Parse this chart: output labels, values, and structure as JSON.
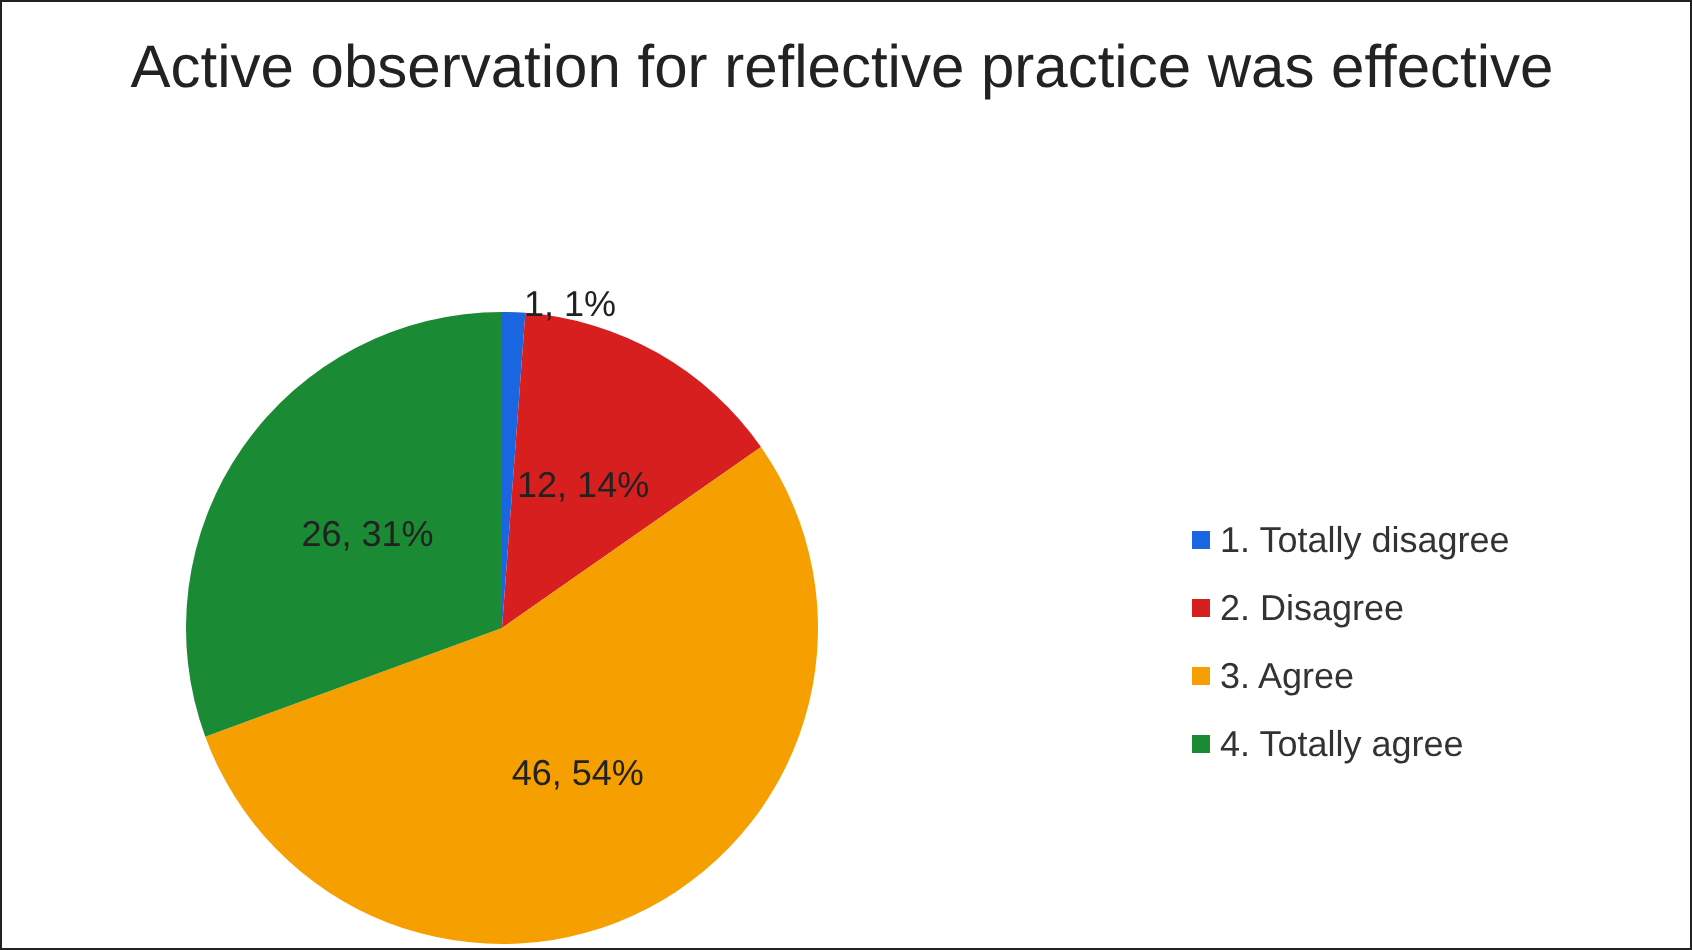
{
  "chart_data": {
    "type": "pie",
    "title": "Active observation for reflective practice was effective",
    "categories": [
      "1. Totally disagree",
      "2. Disagree",
      "3. Agree",
      "4. Totally agree"
    ],
    "values": [
      1,
      12,
      46,
      26
    ],
    "colors": [
      "#1a66e0",
      "#d81f1f",
      "#f5a000",
      "#1a8a34"
    ],
    "value_labels": [
      "1, 1%",
      "12, 14%",
      "46, 54%",
      "26, 31%"
    ],
    "legend": "right"
  }
}
